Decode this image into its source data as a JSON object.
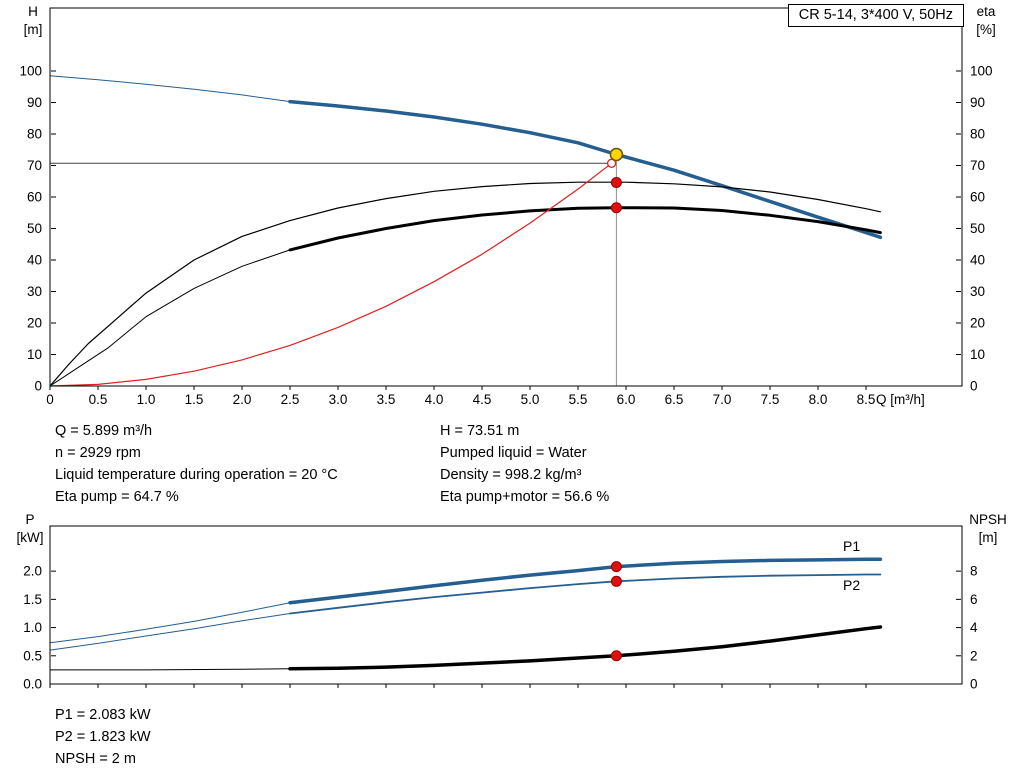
{
  "title_box": "CR 5-14, 3*400 V, 50Hz",
  "info_top": {
    "left": [
      "Q = 5.899 m³/h",
      "n = 2929 rpm",
      "Liquid temperature during operation = 20 °C",
      "Eta pump = 64.7 %"
    ],
    "right": [
      "H = 73.51 m",
      "Pumped liquid = Water",
      "Density = 998.2 kg/m³",
      "Eta pump+motor = 56.6 %"
    ]
  },
  "info_bottom": [
    "P1 = 2.083 kW",
    "P2 = 1.823 kW",
    "NPSH = 2 m"
  ],
  "colors": {
    "curve_blue": "#255e91",
    "curve_black": "#000000",
    "curve_red": "#e02020",
    "duty_yellow": "#ffd400",
    "marker_red": "#e01010",
    "guide_gray": "#909090",
    "guide_dark": "#404040"
  },
  "chart_data": [
    {
      "type": "line",
      "name": "qh-eta-chart",
      "xlabel": "Q [m³/h]",
      "ylabel_left": [
        "H",
        "[m]"
      ],
      "ylabel_right": [
        "eta",
        "[%]"
      ],
      "xlim": [
        0,
        9.5
      ],
      "ylim": [
        0,
        120
      ],
      "x_ticks": [
        0,
        0.5,
        1,
        1.5,
        2,
        2.5,
        3,
        3.5,
        4,
        4.5,
        5,
        5.5,
        6,
        6.5,
        7,
        7.5,
        8,
        8.5
      ],
      "x_tick_labels": [
        "0",
        "0.5",
        "1.0",
        "1.5",
        "2.0",
        "2.5",
        "3.0",
        "3.5",
        "4.0",
        "4.5",
        "5.0",
        "5.5",
        "6.0",
        "6.5",
        "7.0",
        "7.5",
        "8.0",
        "8.5"
      ],
      "y_ticks": [
        0,
        10,
        20,
        30,
        40,
        50,
        60,
        70,
        80,
        90,
        100
      ],
      "y_tick_labels_left": [
        "0",
        "10",
        "20",
        "30",
        "40",
        "50",
        "60",
        "70",
        "80",
        "90",
        "100"
      ],
      "y_tick_labels_right": [
        "0",
        "10",
        "20",
        "30",
        "40",
        "50",
        "60",
        "70",
        "80",
        "90",
        "100"
      ],
      "guides": [
        {
          "type": "h",
          "at": 70.7,
          "from": 0,
          "to": 5.85,
          "color": "#404040",
          "name": "head-guide-line"
        },
        {
          "type": "v",
          "at": 5.9,
          "from": 0,
          "to": 73.51,
          "color": "#909090",
          "name": "flow-guide-line"
        }
      ],
      "series": [
        {
          "name": "head-extension",
          "color": "#255e91",
          "width": 1,
          "points": [
            [
              0,
              98.5
            ],
            [
              0.5,
              97.2
            ],
            [
              1,
              95.8
            ],
            [
              1.5,
              94.2
            ],
            [
              2,
              92.4
            ],
            [
              2.5,
              90.3
            ]
          ]
        },
        {
          "name": "head",
          "color": "#255e91",
          "width": 3.5,
          "points": [
            [
              2.5,
              90.3
            ],
            [
              3,
              88.9
            ],
            [
              3.5,
              87.3
            ],
            [
              4,
              85.4
            ],
            [
              4.5,
              83.1
            ],
            [
              5,
              80.4
            ],
            [
              5.5,
              77.2
            ],
            [
              5.9,
              73.5
            ],
            [
              6.5,
              68.5
            ],
            [
              7,
              63.6
            ],
            [
              7.5,
              58.6
            ],
            [
              8,
              53.6
            ],
            [
              8.5,
              48.7
            ],
            [
              8.65,
              47.2
            ]
          ]
        },
        {
          "name": "eta-pump",
          "color": "#000000",
          "width": 1.2,
          "points": [
            [
              0,
              0
            ],
            [
              0.2,
              7
            ],
            [
              0.4,
              13.5
            ],
            [
              0.7,
              21.5
            ],
            [
              1,
              29.5
            ],
            [
              1.5,
              40
            ],
            [
              2,
              47.5
            ],
            [
              2.5,
              52.5
            ],
            [
              3,
              56.5
            ],
            [
              3.5,
              59.5
            ],
            [
              4,
              61.8
            ],
            [
              4.5,
              63.3
            ],
            [
              5,
              64.3
            ],
            [
              5.5,
              64.7
            ],
            [
              6,
              64.7
            ],
            [
              6.5,
              64.2
            ],
            [
              7,
              63.2
            ],
            [
              7.5,
              61.6
            ],
            [
              8,
              59.2
            ],
            [
              8.5,
              56.3
            ],
            [
              8.65,
              55.3
            ]
          ]
        },
        {
          "name": "eta-total-extension",
          "color": "#000000",
          "width": 1,
          "points": [
            [
              0,
              0
            ],
            [
              0.3,
              6
            ],
            [
              0.6,
              12
            ],
            [
              1,
              22
            ],
            [
              1.5,
              31
            ],
            [
              2,
              38
            ],
            [
              2.5,
              43.2
            ]
          ]
        },
        {
          "name": "eta-total",
          "color": "#000000",
          "width": 3,
          "points": [
            [
              2.5,
              43.2
            ],
            [
              3,
              47
            ],
            [
              3.5,
              50
            ],
            [
              4,
              52.5
            ],
            [
              4.5,
              54.3
            ],
            [
              5,
              55.6
            ],
            [
              5.5,
              56.4
            ],
            [
              5.9,
              56.6
            ],
            [
              6.5,
              56.5
            ],
            [
              7,
              55.7
            ],
            [
              7.5,
              54.2
            ],
            [
              8,
              52.2
            ],
            [
              8.5,
              49.6
            ],
            [
              8.65,
              48.7
            ]
          ]
        },
        {
          "name": "system-curve",
          "color": "#e02020",
          "width": 1.2,
          "points": [
            [
              0,
              0
            ],
            [
              0.5,
              0.5
            ],
            [
              1,
              2.1
            ],
            [
              1.5,
              4.7
            ],
            [
              2,
              8.3
            ],
            [
              2.5,
              12.9
            ],
            [
              3,
              18.6
            ],
            [
              3.5,
              25.3
            ],
            [
              4,
              33.1
            ],
            [
              4.5,
              41.8
            ],
            [
              5,
              51.7
            ],
            [
              5.5,
              62.5
            ],
            [
              5.85,
              70.7
            ]
          ]
        }
      ],
      "markers": [
        {
          "x": 5.85,
          "y": 70.7,
          "r": 4,
          "fill": "#ffffff",
          "stroke": "#e02020",
          "sw": 1.3,
          "name": "requested-duty-marker"
        },
        {
          "x": 5.9,
          "y": 73.51,
          "r": 6,
          "fill": "#ffd400",
          "stroke": "#6b5600",
          "sw": 1.5,
          "name": "duty-point-marker"
        },
        {
          "x": 5.9,
          "y": 64.6,
          "r": 5,
          "fill": "#e01010",
          "stroke": "#990000",
          "sw": 1,
          "name": "eta-pump-marker"
        },
        {
          "x": 5.9,
          "y": 56.6,
          "r": 5,
          "fill": "#e01010",
          "stroke": "#990000",
          "sw": 1,
          "name": "eta-total-marker"
        }
      ],
      "labels": []
    },
    {
      "type": "line",
      "name": "power-npsh-chart",
      "ylabel_left": [
        "P",
        "[kW]"
      ],
      "ylabel_right": [
        "NPSH",
        "[m]"
      ],
      "xlim": [
        0,
        9.5
      ],
      "ylim": [
        0,
        2.8
      ],
      "x_ticks": [
        0,
        0.5,
        1,
        1.5,
        2,
        2.5,
        3,
        3.5,
        4,
        4.5,
        5,
        5.5,
        6,
        6.5,
        7,
        7.5,
        8,
        8.5
      ],
      "y_ticks": [
        0,
        0.5,
        1,
        1.5,
        2
      ],
      "y_tick_labels_left": [
        "0.0",
        "0.5",
        "1.0",
        "1.5",
        "2.0"
      ],
      "y_tick_labels_right": [
        "0",
        "2",
        "4",
        "6",
        "8"
      ],
      "guides": [],
      "series": [
        {
          "name": "p1-extension",
          "color": "#255e91",
          "width": 1,
          "points": [
            [
              0,
              0.73
            ],
            [
              0.5,
              0.84
            ],
            [
              1,
              0.97
            ],
            [
              1.5,
              1.11
            ],
            [
              2,
              1.27
            ],
            [
              2.5,
              1.44
            ]
          ]
        },
        {
          "name": "p1",
          "color": "#255e91",
          "width": 3.5,
          "points": [
            [
              2.5,
              1.44
            ],
            [
              3,
              1.54
            ],
            [
              3.5,
              1.64
            ],
            [
              4,
              1.74
            ],
            [
              4.5,
              1.84
            ],
            [
              5,
              1.93
            ],
            [
              5.5,
              2.01
            ],
            [
              5.9,
              2.08
            ],
            [
              6.5,
              2.14
            ],
            [
              7,
              2.17
            ],
            [
              7.5,
              2.19
            ],
            [
              8,
              2.2
            ],
            [
              8.5,
              2.21
            ],
            [
              8.65,
              2.21
            ]
          ]
        },
        {
          "name": "p2-extension",
          "color": "#255e91",
          "width": 1,
          "points": [
            [
              0,
              0.6
            ],
            [
              0.5,
              0.72
            ],
            [
              1,
              0.85
            ],
            [
              1.5,
              0.98
            ],
            [
              2,
              1.12
            ],
            [
              2.5,
              1.25
            ]
          ]
        },
        {
          "name": "p2",
          "color": "#255e91",
          "width": 1.8,
          "points": [
            [
              2.5,
              1.25
            ],
            [
              3,
              1.35
            ],
            [
              3.5,
              1.45
            ],
            [
              4,
              1.54
            ],
            [
              4.5,
              1.62
            ],
            [
              5,
              1.7
            ],
            [
              5.5,
              1.77
            ],
            [
              5.9,
              1.82
            ],
            [
              6.5,
              1.87
            ],
            [
              7,
              1.9
            ],
            [
              7.5,
              1.92
            ],
            [
              8,
              1.93
            ],
            [
              8.5,
              1.94
            ],
            [
              8.65,
              1.94
            ]
          ]
        },
        {
          "name": "npsh-extension",
          "color": "#000000",
          "width": 1,
          "points": [
            [
              0,
              0.25
            ],
            [
              1,
              0.25
            ],
            [
              2,
              0.26
            ],
            [
              2.5,
              0.27
            ]
          ]
        },
        {
          "name": "npsh",
          "color": "#000000",
          "width": 3.5,
          "points": [
            [
              2.5,
              0.27
            ],
            [
              3,
              0.28
            ],
            [
              3.5,
              0.3
            ],
            [
              4,
              0.33
            ],
            [
              4.5,
              0.37
            ],
            [
              5,
              0.41
            ],
            [
              5.5,
              0.46
            ],
            [
              5.9,
              0.5
            ],
            [
              6.5,
              0.58
            ],
            [
              7,
              0.66
            ],
            [
              7.5,
              0.76
            ],
            [
              8,
              0.87
            ],
            [
              8.5,
              0.98
            ],
            [
              8.65,
              1.01
            ]
          ]
        }
      ],
      "markers": [
        {
          "x": 5.9,
          "y": 2.08,
          "r": 5,
          "fill": "#e01010",
          "stroke": "#990000",
          "sw": 1,
          "name": "p1-marker"
        },
        {
          "x": 5.9,
          "y": 1.82,
          "r": 5,
          "fill": "#e01010",
          "stroke": "#990000",
          "sw": 1,
          "name": "p2-marker"
        },
        {
          "x": 5.9,
          "y": 0.5,
          "r": 5,
          "fill": "#e01010",
          "stroke": "#990000",
          "sw": 1,
          "name": "npsh-marker"
        }
      ],
      "labels": [
        {
          "text": "P1",
          "x": 8.35,
          "y": 2.36,
          "color": "#255e91"
        },
        {
          "text": "P2",
          "x": 8.35,
          "y": 1.67,
          "color": "#255e91"
        }
      ]
    }
  ]
}
